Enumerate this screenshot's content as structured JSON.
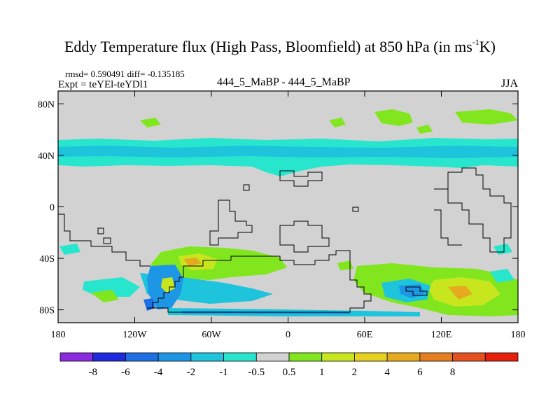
{
  "title": {
    "main": "Eddy Temperature flux (High Pass, Bloomfield) at 850 hPa (in ms",
    "superscript": "-1",
    "end": "K)"
  },
  "stats": {
    "rmsd_text": "rmsd= 0.590491 diff= -0.135185"
  },
  "experiment": {
    "label": "Expt = teYEl-teYDl1"
  },
  "center_label": "444_5_MaBP - 444_5_MaBP",
  "season": "JJA",
  "axes": {
    "x_ticks": [
      "180",
      "120W",
      "60W",
      "0",
      "60E",
      "120E",
      "180"
    ],
    "y_ticks": [
      "80N",
      "40N",
      "0",
      "40S",
      "80S"
    ]
  },
  "colorbar": {
    "colors": [
      "#8a2be2",
      "#1e28dc",
      "#1e6ee6",
      "#1e96e6",
      "#1ec3dc",
      "#28e6cd",
      "#d2d2d2",
      "#82e61e",
      "#c8e61e",
      "#e6d21e",
      "#e6aa1e",
      "#e67d1e",
      "#e6501e",
      "#e61e0a"
    ],
    "labels": [
      "-8",
      "-6",
      "-4",
      "-2",
      "-1",
      "-0.5",
      "0.5",
      "1",
      "2",
      "4",
      "6",
      "8"
    ]
  },
  "map_colors": {
    "background": "#d2d2d2",
    "cyan": "#28e6cd",
    "light_blue": "#1ec3dc",
    "blue": "#1e96e6",
    "dark_blue": "#1e6ee6",
    "green": "#82e61e",
    "yellow_green": "#c8e61e",
    "orange": "#e6aa1e"
  }
}
